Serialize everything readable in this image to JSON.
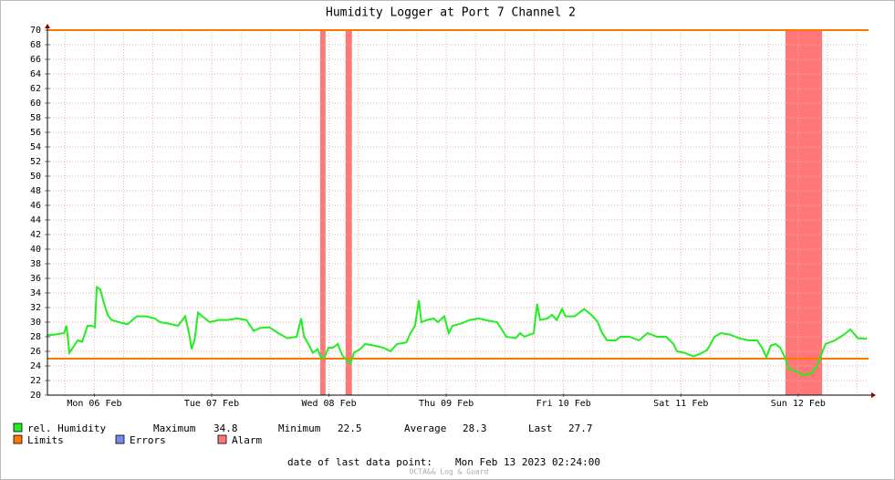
{
  "chart_data": {
    "type": "line",
    "title": "Humidity Logger at Port 7 Channel 2",
    "xlim": [
      2.4,
      170.4
    ],
    "xticks": [
      {
        "value": 12,
        "label": "Mon 06 Feb"
      },
      {
        "value": 36,
        "label": "Tue 07 Feb"
      },
      {
        "value": 60,
        "label": "Wed 08 Feb"
      },
      {
        "value": 84,
        "label": "Thu 09 Feb"
      },
      {
        "value": 108,
        "label": "Fri 10 Feb"
      },
      {
        "value": 132,
        "label": "Sat 11 Feb"
      },
      {
        "value": 156,
        "label": "Sun 12 Feb"
      }
    ],
    "xgrid": [
      6,
      12,
      18,
      24,
      30,
      36,
      42,
      48,
      54,
      60,
      66,
      72,
      78,
      84,
      90,
      96,
      102,
      108,
      114,
      120,
      126,
      132,
      138,
      144,
      150,
      156,
      162,
      168
    ],
    "ylim": [
      20,
      70
    ],
    "yticks": [
      20,
      22,
      24,
      26,
      28,
      30,
      32,
      34,
      36,
      38,
      40,
      42,
      44,
      46,
      48,
      50,
      52,
      54,
      56,
      58,
      60,
      62,
      64,
      66,
      68,
      70
    ],
    "grid": true,
    "x": [
      2.4,
      3.9,
      5.8,
      6.3,
      6.9,
      7.6,
      8.6,
      9.5,
      10.1,
      10.6,
      11.4,
      12.1,
      12.5,
      13.2,
      13.8,
      14.7,
      15.5,
      17.0,
      18.8,
      19.8,
      20.7,
      22.6,
      24.4,
      25.4,
      27.2,
      29.1,
      30.6,
      31.5,
      31.9,
      32.5,
      33.2,
      34.1,
      35.6,
      37.5,
      39.3,
      41.2,
      43.1,
      44.6,
      45.9,
      47.8,
      49.6,
      51.5,
      53.4,
      54.3,
      54.9,
      55.8,
      56.7,
      57.7,
      58.4,
      59.1,
      59.9,
      60.8,
      61.8,
      62.7,
      63.6,
      64.4,
      65.1,
      66.4,
      67.4,
      69.2,
      71.1,
      72.6,
      73.9,
      75.8,
      76.7,
      77.6,
      78.4,
      78.9,
      80.1,
      81.4,
      82.3,
      83.6,
      84.5,
      85.3,
      87.0,
      88.8,
      90.7,
      92.6,
      94.4,
      96.3,
      98.2,
      99.1,
      100.0,
      101.9,
      102.6,
      103.2,
      104.7,
      105.6,
      106.6,
      107.7,
      108.4,
      110.3,
      112.2,
      113.7,
      115.0,
      115.9,
      116.9,
      118.7,
      119.6,
      121.5,
      123.4,
      125.2,
      127.1,
      129.0,
      130.5,
      131.2,
      132.7,
      134.6,
      136.4,
      137.4,
      138.9,
      140.2,
      142.0,
      143.9,
      145.8,
      147.6,
      148.6,
      149.5,
      150.4,
      151.4,
      152.3,
      153.2,
      154.2,
      156.0,
      156.9,
      158.8,
      159.8,
      160.7,
      161.6,
      163.5,
      165.4,
      166.7,
      168.2,
      170.1
    ],
    "series": [
      {
        "name": "rel. Humidity",
        "color": "#22ee22",
        "values": [
          28.2,
          28.3,
          28.5,
          29.5,
          25.8,
          26.5,
          27.5,
          27.3,
          28.5,
          29.5,
          29.5,
          29.3,
          34.8,
          34.5,
          33,
          31,
          30.3,
          30.0,
          29.7,
          30.3,
          30.8,
          30.8,
          30.5,
          30,
          29.8,
          29.5,
          30.8,
          28,
          26.3,
          27.5,
          31.3,
          30.8,
          30,
          30.3,
          30.3,
          30.5,
          30.3,
          28.8,
          29.2,
          29.3,
          28.5,
          27.8,
          28,
          30.5,
          28,
          27,
          25.8,
          26.3,
          25,
          25.2,
          26.5,
          26.5,
          27,
          25.5,
          24.8,
          24.3,
          25.8,
          26.3,
          27,
          26.8,
          26.5,
          26,
          27,
          27.2,
          28.5,
          29.5,
          33,
          30,
          30.3,
          30.5,
          30,
          30.8,
          28.5,
          29.5,
          29.8,
          30.3,
          30.5,
          30.2,
          30,
          28,
          27.8,
          28.5,
          28,
          28.5,
          32.5,
          30.3,
          30.5,
          31,
          30.3,
          31.8,
          30.8,
          30.8,
          31.8,
          31,
          30,
          28.5,
          27.5,
          27.5,
          28,
          28,
          27.5,
          28.5,
          28,
          28,
          27,
          26,
          25.8,
          25.3,
          25.8,
          26.2,
          28,
          28.5,
          28.3,
          27.8,
          27.5,
          27.5,
          26.5,
          25.2,
          26.8,
          27,
          26.5,
          25.3,
          23.5,
          23.2,
          22.7,
          23,
          24,
          25.5,
          27,
          27.5,
          28.3,
          29,
          27.8,
          27.7
        ]
      }
    ],
    "limits": {
      "name": "Limits",
      "color": "#ff7700",
      "values": [
        70,
        25
      ]
    },
    "errors": {
      "name": "Errors",
      "color": "#7788ee"
    },
    "alarm": {
      "name": "Alarm",
      "color": "#ff7777",
      "periods": [
        [
          58.2,
          59.3
        ],
        [
          63.4,
          64.7
        ],
        [
          153.4,
          160.9
        ]
      ]
    },
    "stats": [
      {
        "label": "Maximum",
        "value": 34.8
      },
      {
        "label": "Minimum",
        "value": 22.5
      },
      {
        "label": "Average",
        "value": 28.3
      },
      {
        "label": "Last",
        "value": 27.7
      }
    ],
    "footer": {
      "label": "date of last data point:",
      "value": "Mon Feb 13 2023 02:24:00"
    },
    "watermark": "OCTA&& Log & Guard"
  }
}
